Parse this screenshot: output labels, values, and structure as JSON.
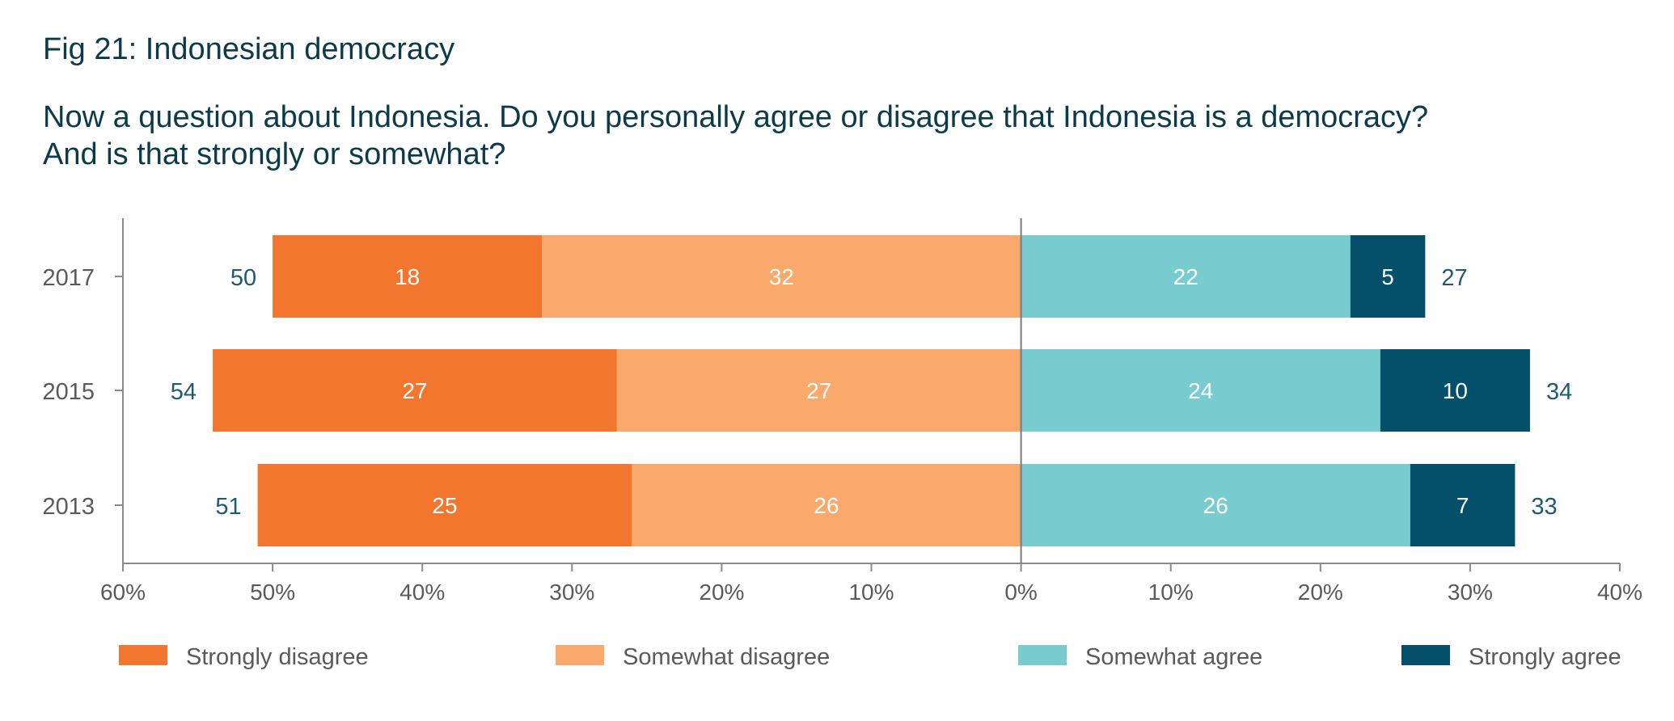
{
  "header": {
    "figure_title": "Fig 21: Indonesian democracy",
    "question_line_1": "Now a question about Indonesia. Do you personally agree or disagree that Indonesia is a democracy?",
    "question_line_2": "And is that strongly or somewhat?"
  },
  "chart_data": {
    "type": "bar",
    "orientation": "horizontal-diverging",
    "title": "Fig 21: Indonesian democracy",
    "categories": [
      "2017",
      "2015",
      "2013"
    ],
    "series": [
      {
        "name": "Strongly disagree",
        "side": "disagree",
        "color": "#f2762e",
        "values": [
          18,
          27,
          25
        ]
      },
      {
        "name": "Somewhat disagree",
        "side": "disagree",
        "color": "#f8a96b",
        "values": [
          32,
          27,
          26
        ]
      },
      {
        "name": "Somewhat agree",
        "side": "agree",
        "color": "#78ccd0",
        "values": [
          22,
          24,
          26
        ]
      },
      {
        "name": "Strongly agree",
        "side": "agree",
        "color": "#04506b",
        "values": [
          5,
          10,
          7
        ]
      }
    ],
    "disagree_totals": [
      50,
      54,
      51
    ],
    "agree_totals": [
      27,
      34,
      33
    ],
    "x_range": [
      -60,
      40
    ],
    "x_ticks": [
      -60,
      -50,
      -40,
      -30,
      -20,
      -10,
      0,
      10,
      20,
      30,
      40
    ],
    "x_tick_labels": [
      "60%",
      "50%",
      "40%",
      "30%",
      "20%",
      "10%",
      "0%",
      "10%",
      "20%",
      "30%",
      "40%"
    ],
    "legend_position": "bottom"
  },
  "legend": {
    "items": [
      {
        "label": "Strongly disagree",
        "color": "#f2762e"
      },
      {
        "label": "Somewhat disagree",
        "color": "#f8a96b"
      },
      {
        "label": "Somewhat agree",
        "color": "#78ccd0"
      },
      {
        "label": "Strongly agree",
        "color": "#04506b"
      }
    ]
  }
}
